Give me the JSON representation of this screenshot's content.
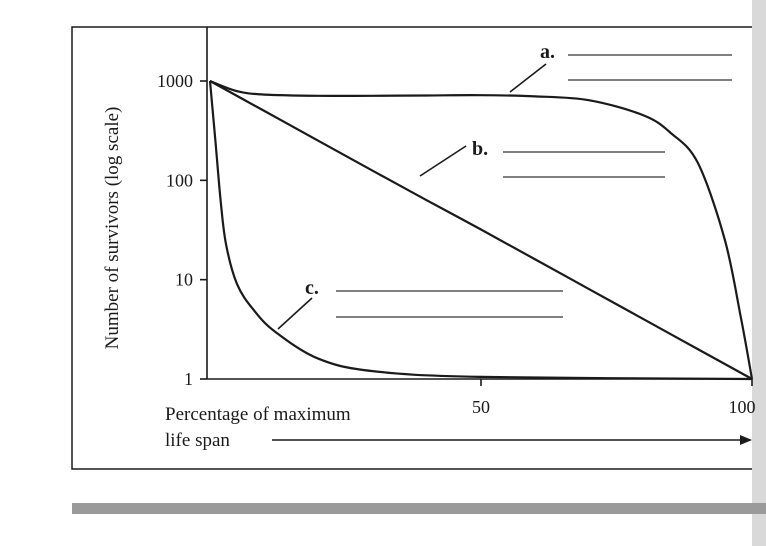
{
  "chart_data": {
    "type": "line",
    "ylabel": "Number of survivors (log scale)",
    "xlabel_line1": "Percentage of maximum",
    "xlabel_line2": "life span",
    "y_scale": "log",
    "ylim": [
      1,
      1000
    ],
    "xlim": [
      0,
      100
    ],
    "y_ticks": [
      "1000",
      "100",
      "10",
      "1"
    ],
    "x_ticks": [
      "50",
      "100"
    ],
    "grid": false,
    "series": [
      {
        "name": "a.",
        "x": [
          0,
          5,
          10,
          20,
          30,
          40,
          50,
          60,
          70,
          80,
          85,
          90,
          95,
          98,
          100
        ],
        "y": [
          1000,
          790,
          730,
          710,
          710,
          715,
          720,
          700,
          640,
          450,
          300,
          150,
          25,
          4,
          1
        ]
      },
      {
        "name": "b.",
        "x": [
          0,
          10,
          20,
          30,
          40,
          50,
          60,
          70,
          80,
          90,
          100
        ],
        "y": [
          1000,
          500,
          250,
          125,
          63,
          32,
          16,
          8,
          4,
          2,
          1
        ]
      },
      {
        "name": "c.",
        "x": [
          0,
          1,
          2,
          3,
          5,
          8,
          12,
          20,
          30,
          50,
          100
        ],
        "y": [
          1000,
          250,
          60,
          22,
          9,
          5,
          3,
          1.6,
          1.2,
          1.05,
          1
        ]
      }
    ]
  },
  "colors": {
    "ink": "#1a1a1a",
    "bottom_band": "#9a9a9a"
  }
}
